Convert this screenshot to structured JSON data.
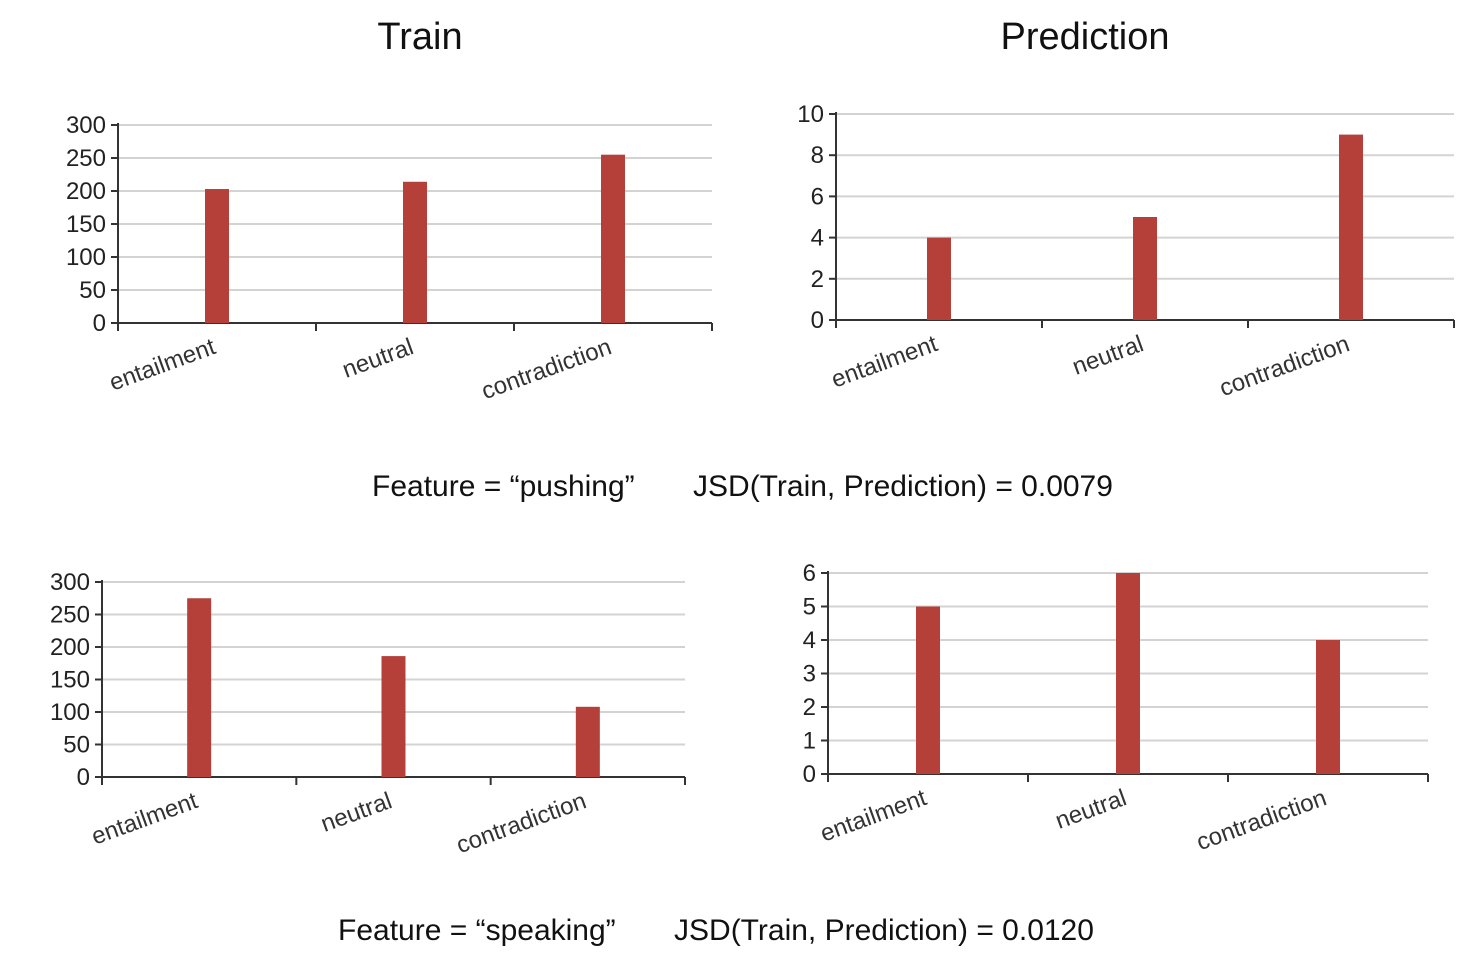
{
  "titles": {
    "train": "Train",
    "prediction": "Prediction"
  },
  "captions": [
    {
      "feature": "Feature = “pushing”",
      "jsd": "JSD(Train, Prediction) = 0.0079"
    },
    {
      "feature": "Feature = “speaking”",
      "jsd": "JSD(Train, Prediction) = 0.0120"
    }
  ],
  "colors": {
    "bar": "#b5403a",
    "grid": "#d3d3d3",
    "axis": "#333333"
  },
  "chart_data": [
    {
      "type": "bar",
      "panel": "Train",
      "feature": "pushing",
      "categories": [
        "entailment",
        "neutral",
        "contradiction"
      ],
      "values": [
        203,
        214,
        255
      ],
      "ylim": [
        0,
        300
      ],
      "yticks": [
        0,
        50,
        100,
        150,
        200,
        250,
        300
      ],
      "grid": true,
      "xlabel": "",
      "ylabel": ""
    },
    {
      "type": "bar",
      "panel": "Prediction",
      "feature": "pushing",
      "categories": [
        "entailment",
        "neutral",
        "contradiction"
      ],
      "values": [
        4,
        5,
        9
      ],
      "ylim": [
        0,
        10
      ],
      "yticks": [
        0,
        2,
        4,
        6,
        8,
        10
      ],
      "grid": true,
      "xlabel": "",
      "ylabel": ""
    },
    {
      "type": "bar",
      "panel": "Train",
      "feature": "speaking",
      "categories": [
        "entailment",
        "neutral",
        "contradiction"
      ],
      "values": [
        275,
        186,
        108
      ],
      "ylim": [
        0,
        300
      ],
      "yticks": [
        0,
        50,
        100,
        150,
        200,
        250,
        300
      ],
      "grid": true,
      "xlabel": "",
      "ylabel": ""
    },
    {
      "type": "bar",
      "panel": "Prediction",
      "feature": "speaking",
      "categories": [
        "entailment",
        "neutral",
        "contradiction"
      ],
      "values": [
        5,
        6,
        4
      ],
      "ylim": [
        0,
        6
      ],
      "yticks": [
        0,
        1,
        2,
        3,
        4,
        5,
        6
      ],
      "grid": true,
      "xlabel": "",
      "ylabel": ""
    }
  ]
}
